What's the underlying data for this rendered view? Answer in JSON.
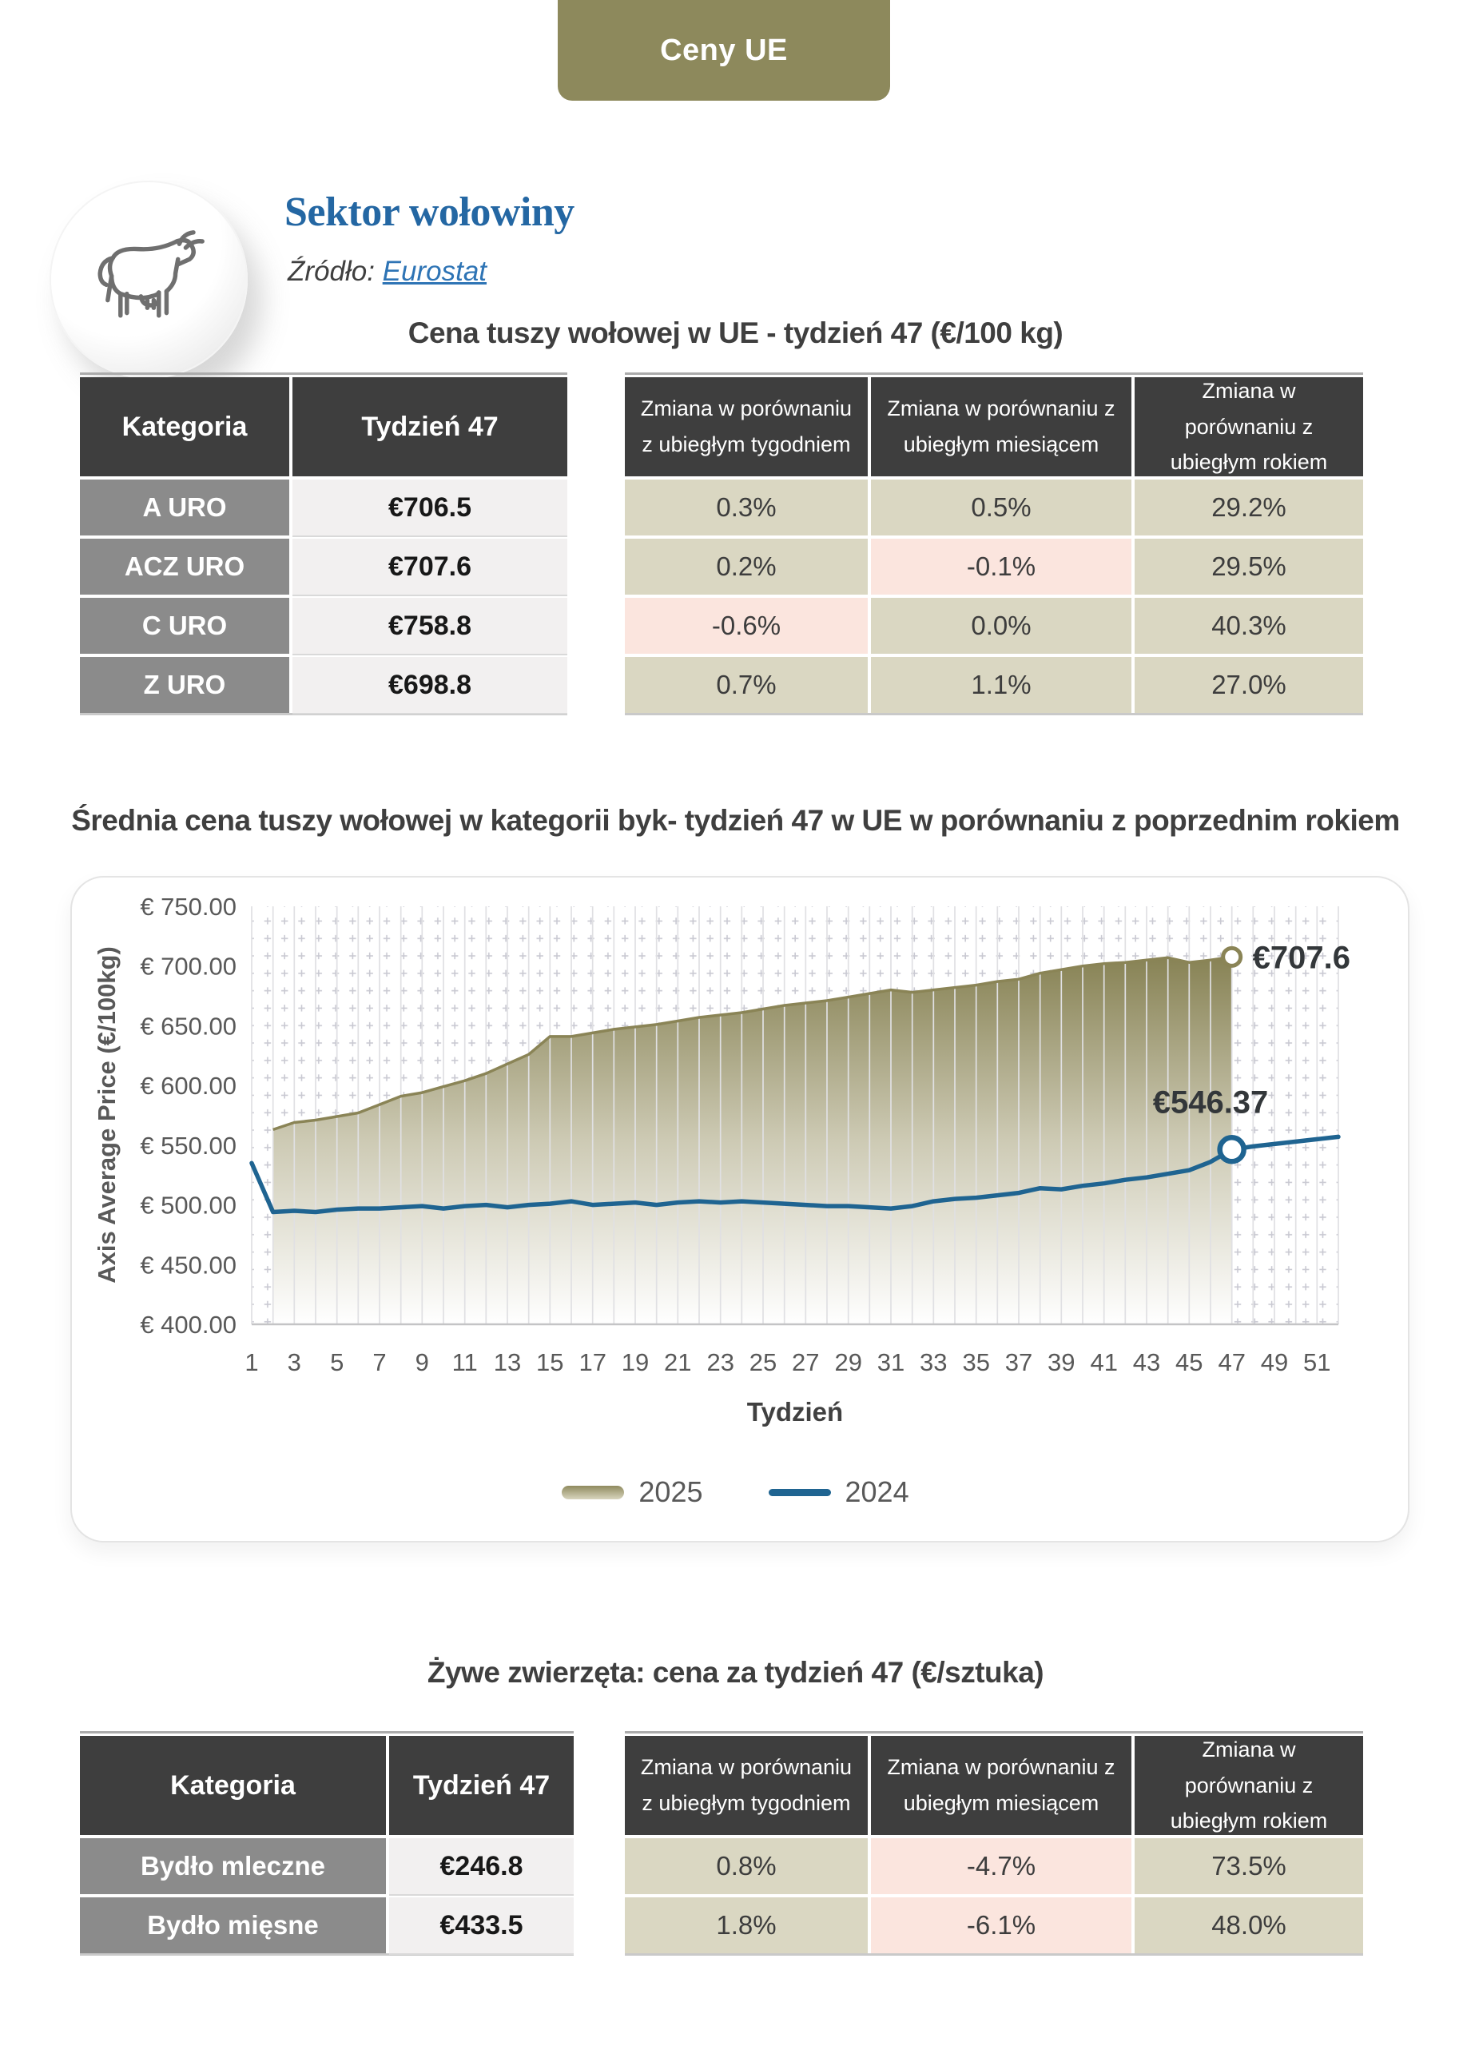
{
  "page": {
    "tab_label": "Ceny UE",
    "accent_olive": "#8D895C",
    "accent_blue": "#1F6491",
    "negative_cell_color": "#FBE5DE",
    "positive_cell_color": "#DAD7C2"
  },
  "header": {
    "title": "Sektor wołowiny",
    "source_label": "Źródło:",
    "source_link_text": "Eurostat",
    "icon": "cow-icon"
  },
  "carcass_table": {
    "title": "Cena tuszy wołowej w UE - tydzień 47 (€/100 kg)",
    "col_category": "Kategoria",
    "col_week": "Tydzień 47",
    "change_cols": [
      "Zmiana w porównaniu z ubiegłym tygodniem",
      "Zmiana w porównaniu z ubiegłym miesiącem",
      "Zmiana w porównaniu z ubiegłym rokiem"
    ],
    "rows": [
      {
        "category": "A URO",
        "price": "€706.5",
        "changes": [
          "0.3%",
          "0.5%",
          "29.2%"
        ]
      },
      {
        "category": "ACZ URO",
        "price": "€707.6",
        "changes": [
          "0.2%",
          "-0.1%",
          "29.5%"
        ]
      },
      {
        "category": "C URO",
        "price": "€758.8",
        "changes": [
          "-0.6%",
          "0.0%",
          "40.3%"
        ]
      },
      {
        "category": "Z URO",
        "price": "€698.8",
        "changes": [
          "0.7%",
          "1.1%",
          "27.0%"
        ]
      }
    ]
  },
  "chart_data": {
    "type": "area+line",
    "title": "Średnia cena tuszy wołowej w kategorii byk- tydzień 47 w UE w porównaniu z poprzednim rokiem",
    "xlabel": "Tydzień",
    "ylabel": "Axis Average Price (€/100kg)",
    "ylim": [
      400,
      750
    ],
    "ytick_step": 50,
    "ytick_format": "€ {value}.00",
    "xticks": [
      1,
      3,
      5,
      7,
      9,
      11,
      13,
      15,
      17,
      19,
      21,
      23,
      25,
      27,
      29,
      31,
      33,
      35,
      37,
      39,
      41,
      43,
      45,
      47,
      49,
      51
    ],
    "x_range": [
      1,
      52
    ],
    "grid": "plus-dot pattern with weekly vertical gridlines",
    "legend_position": "bottom",
    "series": [
      {
        "name": "2025",
        "type": "area",
        "color": "#8A8456",
        "x_start": 2,
        "values": [
          563,
          569,
          571,
          574,
          577,
          584,
          591,
          594,
          599,
          604,
          610,
          618,
          626,
          641,
          641,
          644,
          647,
          649,
          651,
          654,
          657,
          659,
          661,
          664,
          667,
          669,
          671,
          674,
          677,
          680,
          678,
          680,
          682,
          684,
          687,
          689,
          694,
          697,
          700,
          702,
          703,
          705,
          707,
          703,
          705,
          707.6
        ]
      },
      {
        "name": "2024",
        "type": "line",
        "color": "#1F6491",
        "x_start": 1,
        "values": [
          535,
          494,
          495,
          494,
          496,
          497,
          497,
          498,
          499,
          497,
          499,
          500,
          498,
          500,
          501,
          503,
          500,
          501,
          502,
          500,
          502,
          503,
          502,
          503,
          502,
          501,
          500,
          499,
          499,
          498,
          497,
          499,
          503,
          505,
          506,
          508,
          510,
          514,
          513,
          516,
          518,
          521,
          523,
          526,
          529,
          536,
          546.37,
          549,
          551,
          553,
          555,
          557
        ]
      }
    ],
    "annotations": [
      {
        "series": "2025",
        "x": 47,
        "label": "€707.6"
      },
      {
        "series": "2024",
        "x": 47,
        "label": "€546.37"
      }
    ]
  },
  "live_table": {
    "title": "Żywe zwierzęta: cena za tydzień 47 (€/sztuka)",
    "col_category": "Kategoria",
    "col_week": "Tydzień 47",
    "change_cols": [
      "Zmiana w porównaniu z ubiegłym tygodniem",
      "Zmiana w porównaniu z ubiegłym miesiącem",
      "Zmiana w porównaniu z ubiegłym rokiem"
    ],
    "rows": [
      {
        "category": "Bydło mleczne",
        "price": "€246.8",
        "changes": [
          "0.8%",
          "-4.7%",
          "73.5%"
        ]
      },
      {
        "category": "Bydło mięsne",
        "price": "€433.5",
        "changes": [
          "1.8%",
          "-6.1%",
          "48.0%"
        ]
      }
    ]
  }
}
